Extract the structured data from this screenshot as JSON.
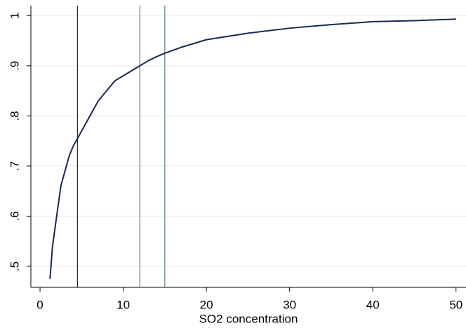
{
  "chart_data": {
    "type": "line",
    "x_label": "SO2 concentration",
    "x": [
      1.2,
      1.5,
      2,
      2.5,
      3,
      3.5,
      4,
      4.5,
      5,
      6,
      7,
      8,
      9,
      10,
      11,
      12,
      13,
      14,
      15,
      17,
      20,
      25,
      30,
      35,
      40,
      45,
      50
    ],
    "values": [
      0.475,
      0.54,
      0.6,
      0.66,
      0.69,
      0.72,
      0.74,
      0.755,
      0.77,
      0.8,
      0.83,
      0.85,
      0.87,
      0.88,
      0.89,
      0.9,
      0.91,
      0.918,
      0.925,
      0.937,
      0.952,
      0.965,
      0.975,
      0.982,
      0.988,
      0.99,
      0.993
    ],
    "color": "#1a2a4f",
    "reference_lines": [
      {
        "x": 4.5,
        "color": "#1a2a4f"
      },
      {
        "x": 12,
        "color": "#5a7f86"
      },
      {
        "x": 15,
        "color": "#5a7f86"
      }
    ],
    "xlim": [
      -1.1,
      51.2
    ],
    "ylim": [
      0.458,
      1.02
    ],
    "xticks": [
      0,
      10,
      20,
      30,
      40,
      50
    ],
    "yticks": [
      {
        "value": 0.5,
        "label": ".5"
      },
      {
        "value": 0.6,
        "label": ".6"
      },
      {
        "value": 0.7,
        "label": ".7"
      },
      {
        "value": 0.8,
        "label": ".8"
      },
      {
        "value": 0.9,
        "label": ".9"
      },
      1
    ],
    "grid": true
  }
}
